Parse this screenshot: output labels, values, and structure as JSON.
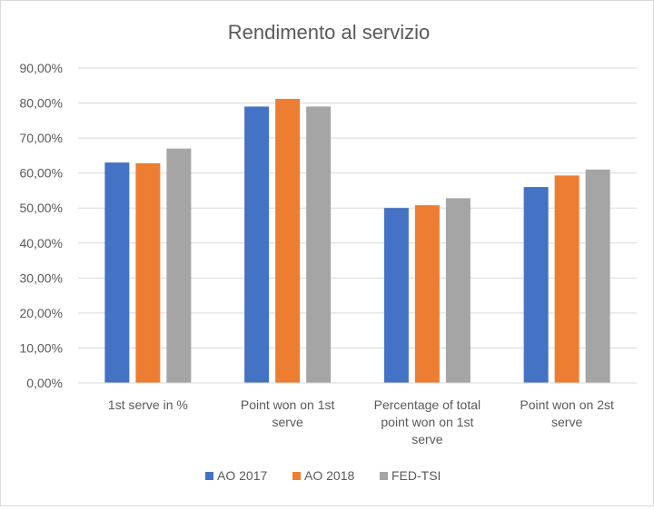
{
  "chart_data": {
    "type": "bar",
    "title": "Rendimento al servizio",
    "categories": [
      [
        "1st serve in %"
      ],
      [
        "Point won on 1st",
        "serve"
      ],
      [
        "Percentage of total",
        "point won on 1st",
        "serve"
      ],
      [
        "Point won on 2st",
        "serve"
      ]
    ],
    "series": [
      {
        "name": "AO 2017",
        "color": "#4472c4",
        "values": [
          63,
          79,
          50,
          56
        ]
      },
      {
        "name": "AO 2018",
        "color": "#ed7d31",
        "values": [
          62.8,
          81.2,
          50.8,
          59.3
        ]
      },
      {
        "name": "FED-TSI",
        "color": "#a5a5a5",
        "values": [
          67,
          79,
          52.8,
          61
        ]
      }
    ],
    "ylim": [
      0,
      90
    ],
    "ytick_step": 10,
    "ytick_labels": [
      "0,00%",
      "10,00%",
      "20,00%",
      "30,00%",
      "40,00%",
      "50,00%",
      "60,00%",
      "70,00%",
      "80,00%",
      "90,00%"
    ],
    "grid": true,
    "legend_position": "bottom"
  }
}
